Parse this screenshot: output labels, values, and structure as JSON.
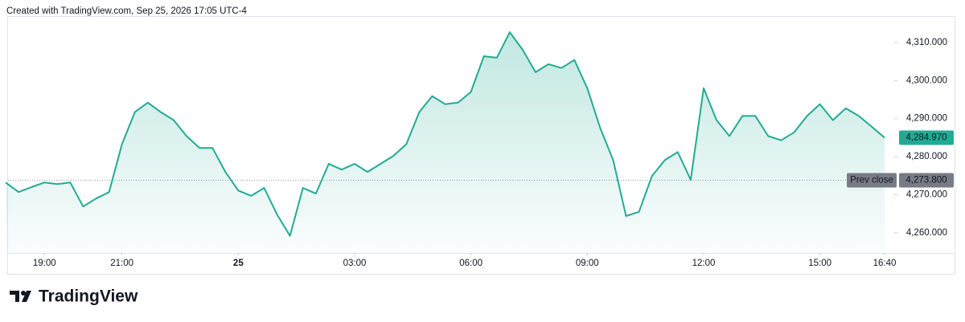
{
  "brand": "TradingView",
  "chart_data": {
    "type": "area",
    "title": "Created with TradingView.com, Sep 25, 2026 17:05 UTC-4",
    "color": "#22ab94",
    "x": [
      "18:00",
      "18:20",
      "18:40",
      "19:00",
      "19:20",
      "19:40",
      "20:00",
      "20:20",
      "20:40",
      "21:00",
      "21:20",
      "21:40",
      "22:00",
      "22:20",
      "22:40",
      "23:00",
      "23:20",
      "23:40",
      "00:00",
      "00:20",
      "00:40",
      "01:00",
      "01:20",
      "01:40",
      "02:00",
      "02:20",
      "02:40",
      "03:00",
      "03:20",
      "03:40",
      "04:00",
      "04:20",
      "04:40",
      "05:00",
      "05:20",
      "05:40",
      "06:00",
      "06:20",
      "06:40",
      "07:00",
      "07:20",
      "07:40",
      "08:00",
      "08:20",
      "08:40",
      "09:00",
      "09:20",
      "09:40",
      "10:00",
      "10:20",
      "10:40",
      "11:00",
      "11:20",
      "11:40",
      "12:00",
      "12:20",
      "12:40",
      "13:00",
      "13:20",
      "13:40",
      "14:00",
      "14:20",
      "14:40",
      "15:00",
      "15:20",
      "15:40",
      "16:00",
      "16:20",
      "16:40"
    ],
    "values": [
      4273.2,
      4270.7,
      4272.0,
      4273.2,
      4272.8,
      4273.2,
      4266.9,
      4269.0,
      4270.7,
      4283.3,
      4291.7,
      4294.2,
      4291.7,
      4289.6,
      4285.4,
      4282.3,
      4282.3,
      4276.0,
      4271.1,
      4269.7,
      4271.8,
      4264.8,
      4259.2,
      4271.8,
      4270.3,
      4278.1,
      4276.6,
      4278.1,
      4276.0,
      4278.1,
      4280.2,
      4283.3,
      4291.7,
      4295.9,
      4293.8,
      4294.2,
      4297.0,
      4306.4,
      4306.0,
      4312.7,
      4308.1,
      4302.2,
      4304.3,
      4303.3,
      4305.4,
      4298.0,
      4287.5,
      4279.1,
      4264.4,
      4265.5,
      4274.9,
      4279.1,
      4281.2,
      4273.9,
      4298.0,
      4289.6,
      4285.4,
      4290.7,
      4290.7,
      4285.4,
      4284.3,
      4286.4,
      4290.7,
      4293.8,
      4289.6,
      4292.7,
      4290.7,
      4287.9,
      4284.97
    ],
    "xticks": [
      {
        "value": "19:00",
        "label": "19:00"
      },
      {
        "value": "21:00",
        "label": "21:00"
      },
      {
        "value": "00:00",
        "label": "25"
      },
      {
        "value": "03:00",
        "label": "03:00"
      },
      {
        "value": "06:00",
        "label": "06:00"
      },
      {
        "value": "09:00",
        "label": "09:00"
      },
      {
        "value": "12:00",
        "label": "12:00"
      },
      {
        "value": "15:00",
        "label": "15:00"
      },
      {
        "value": "16:40",
        "label": "16:40"
      }
    ],
    "ylim": [
      4254.7,
      4318.0
    ],
    "yticks": [
      {
        "value": 4260,
        "label": "4,260.000"
      },
      {
        "value": 4270,
        "label": "4,270.000"
      },
      {
        "value": 4280,
        "label": "4,280.000"
      },
      {
        "value": 4290,
        "label": "4,290.000"
      },
      {
        "value": 4300,
        "label": "4,300.000"
      },
      {
        "value": 4310,
        "label": "4,310.000"
      }
    ],
    "prev_close": {
      "name": "Prev close",
      "value": 4273.8,
      "label": "4,273.800"
    },
    "last_price": {
      "value": 4284.97,
      "label": "4,284.970"
    }
  }
}
